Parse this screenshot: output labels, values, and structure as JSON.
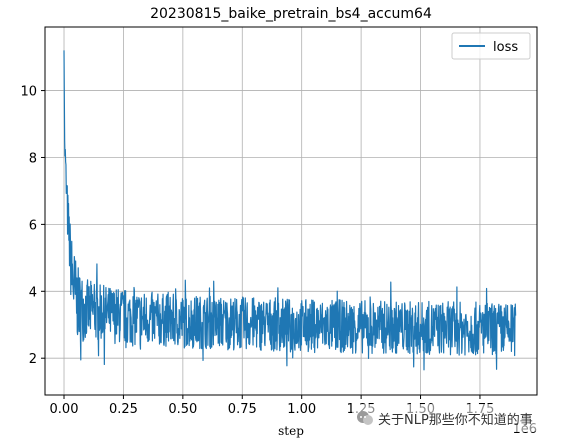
{
  "chart_data": {
    "type": "line",
    "title": "20230815_baike_pretrain_bs4_accum64",
    "xlabel": "step",
    "ylabel": "",
    "x_offset_label": "1e6",
    "xlim": [
      -0.08,
      1.99
    ],
    "ylim": [
      0.9,
      11.9
    ],
    "x_ticks": [
      0.0,
      0.25,
      0.5,
      0.75,
      1.0,
      1.25,
      1.5,
      1.75
    ],
    "x_tick_labels": [
      "0.00",
      "0.25",
      "0.50",
      "0.75",
      "1.00",
      "1.25",
      "1.50",
      "1.75"
    ],
    "y_ticks": [
      2,
      4,
      6,
      8,
      10
    ],
    "y_tick_labels": [
      "2",
      "4",
      "6",
      "8",
      "10"
    ],
    "grid": true,
    "legend_position": "top-right",
    "series": [
      {
        "name": "loss",
        "color": "#1f77b4",
        "x": [
          0.0,
          0.003,
          0.006,
          0.01,
          0.015,
          0.02,
          0.025,
          0.03,
          0.04,
          0.05,
          0.06,
          0.08,
          0.1,
          0.125,
          0.15,
          0.2,
          0.25,
          0.3,
          0.4,
          0.5,
          0.6,
          0.7,
          0.8,
          0.9,
          1.0,
          1.1,
          1.2,
          1.3,
          1.4,
          1.5,
          1.6,
          1.7,
          1.8,
          1.9
        ],
        "values": [
          11.2,
          8.5,
          7.8,
          7.0,
          6.3,
          5.8,
          5.2,
          4.7,
          4.2,
          3.8,
          3.6,
          3.5,
          3.45,
          3.4,
          3.35,
          3.3,
          3.25,
          3.2,
          3.15,
          3.1,
          3.08,
          3.05,
          3.03,
          3.0,
          2.98,
          2.96,
          2.95,
          2.93,
          2.92,
          2.9,
          2.9,
          2.88,
          2.87,
          2.85
        ],
        "noise_band": [
          0.5,
          0.6,
          0.6,
          0.7,
          0.8,
          0.9,
          1.0,
          1.1,
          1.2,
          1.2,
          1.1,
          1.0,
          0.9,
          0.9,
          0.85,
          0.85,
          0.85,
          0.85,
          0.8,
          0.8,
          0.8,
          0.8,
          0.8,
          0.8,
          0.8,
          0.8,
          0.8,
          0.8,
          0.8,
          0.8,
          0.8,
          0.8,
          0.8,
          0.8
        ]
      }
    ]
  },
  "watermark": {
    "text": "关于NLP那些你不知道的事",
    "icon": "chat-bubble-icon"
  }
}
